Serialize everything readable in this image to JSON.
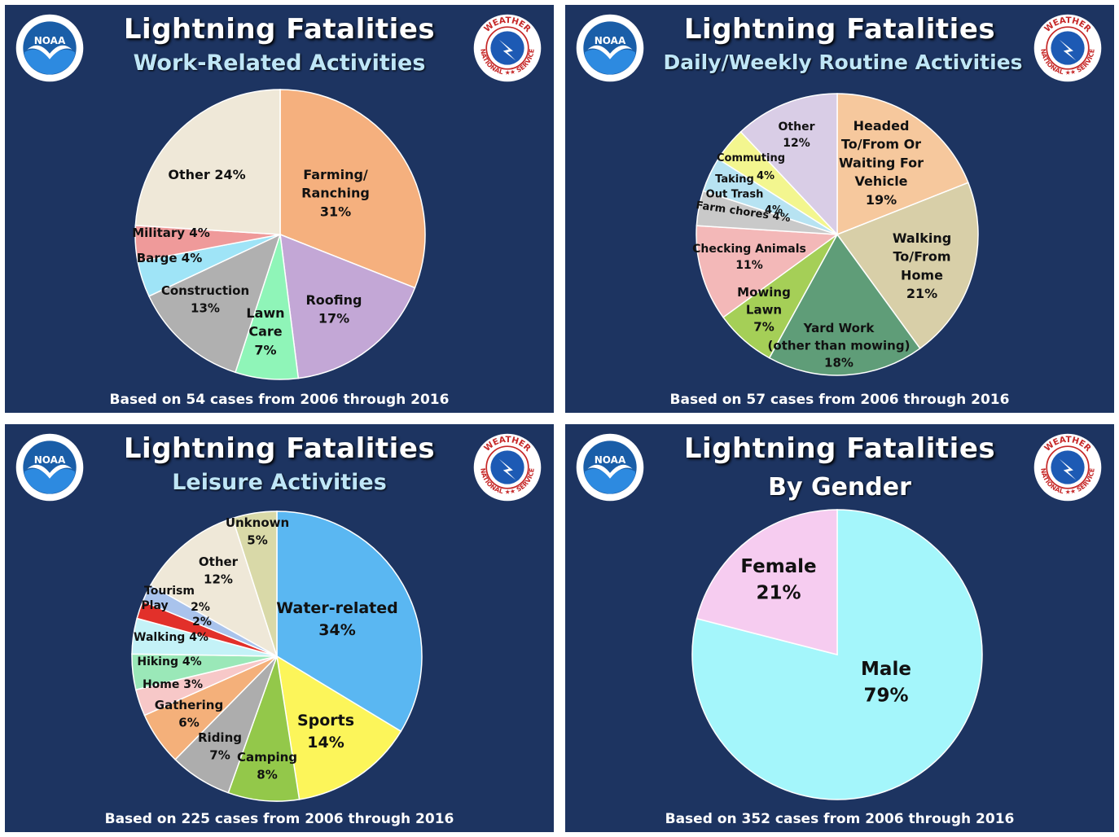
{
  "colors": {
    "panel_bg": "#1d3461",
    "title": "#ffffff",
    "subtitle": "#bfe6f7"
  },
  "logos": {
    "noaa_text": "NOAA",
    "nws_text_top": "WEATHER",
    "nws_text_left": "NATIONAL",
    "nws_text_right": "SERVICE"
  },
  "chart_data": [
    {
      "type": "pie",
      "title": "Lightning Fatalities",
      "subtitle": "Work-Related Activities",
      "footnote": "Based on 54 cases from 2006 through 2016",
      "slices": [
        {
          "label": "Farming/ Ranching",
          "value": 31,
          "pct_text": "31%",
          "color": "#f5b07e"
        },
        {
          "label": "Roofing",
          "value": 17,
          "pct_text": "17%",
          "color": "#c3a7d6"
        },
        {
          "label": "Lawn Care",
          "value": 7,
          "pct_text": "7%",
          "color": "#8ff5b8"
        },
        {
          "label": "Construction",
          "value": 13,
          "pct_text": "13%",
          "color": "#b0b0b0"
        },
        {
          "label": "Barge",
          "value": 4,
          "pct_text": "4%",
          "color": "#9fe4f7"
        },
        {
          "label": "Military",
          "value": 4,
          "pct_text": "4%",
          "color": "#ef9a9a"
        },
        {
          "label": "Other",
          "value": 24,
          "pct_text": "24%",
          "color": "#efe8d8"
        }
      ]
    },
    {
      "type": "pie",
      "title": "Lightning Fatalities",
      "subtitle": "Daily/Weekly Routine Activities",
      "footnote": "Based on 57 cases from 2006 through 2016",
      "slices": [
        {
          "label": "Headed To/From Or Waiting For Vehicle",
          "value": 19,
          "pct_text": "19%",
          "color": "#f6c89d"
        },
        {
          "label": "Walking To/From Home",
          "value": 21,
          "pct_text": "21%",
          "color": "#d8cfa8"
        },
        {
          "label": "Yard Work (other than mowing)",
          "value": 18,
          "pct_text": "18%",
          "color": "#5f9d78"
        },
        {
          "label": "Mowing Lawn",
          "value": 7,
          "pct_text": "7%",
          "color": "#a5cf57"
        },
        {
          "label": "Checking Animals",
          "value": 11,
          "pct_text": "11%",
          "color": "#f3b8b8"
        },
        {
          "label": "Farm chores",
          "value": 4,
          "pct_text": "4%",
          "color": "#c9c9c9"
        },
        {
          "label": "Taking Out Trash",
          "value": 4,
          "pct_text": "4%",
          "color": "#b7e3f2"
        },
        {
          "label": "Commuting",
          "value": 4,
          "pct_text": "4%",
          "color": "#f3f68f"
        },
        {
          "label": "Other",
          "value": 12,
          "pct_text": "12%",
          "color": "#d9cde6"
        }
      ]
    },
    {
      "type": "pie",
      "title": "Lightning Fatalities",
      "subtitle": "Leisure Activities",
      "footnote": "Based on 225 cases from 2006 through 2016",
      "slices": [
        {
          "label": "Water-related",
          "value": 34,
          "pct_text": "34%",
          "color": "#5ab7f2"
        },
        {
          "label": "Sports",
          "value": 14,
          "pct_text": "14%",
          "color": "#fcf55a"
        },
        {
          "label": "Camping",
          "value": 8,
          "pct_text": "8%",
          "color": "#93c84a"
        },
        {
          "label": "Riding",
          "value": 7,
          "pct_text": "7%",
          "color": "#adadad"
        },
        {
          "label": "Gathering",
          "value": 6,
          "pct_text": "6%",
          "color": "#f4b07a"
        },
        {
          "label": "Home",
          "value": 3,
          "pct_text": "3%",
          "color": "#f7c8c8"
        },
        {
          "label": "Hiking",
          "value": 4,
          "pct_text": "4%",
          "color": "#9ae8b8"
        },
        {
          "label": "Walking",
          "value": 4,
          "pct_text": "4%",
          "color": "#c4f2f7"
        },
        {
          "label": "Play",
          "value": 2,
          "pct_text": "2%",
          "color": "#e2302a"
        },
        {
          "label": "Tourism",
          "value": 2,
          "pct_text": "2%",
          "color": "#a9c3ec"
        },
        {
          "label": "Other",
          "value": 12,
          "pct_text": "12%",
          "color": "#efe8d8"
        },
        {
          "label": "Unknown",
          "value": 5,
          "pct_text": "5%",
          "color": "#d9d9a8"
        }
      ]
    },
    {
      "type": "pie",
      "title": "Lightning Fatalities",
      "subtitle": "By Gender",
      "footnote": "Based on 352 cases from 2006 through 2016",
      "slices": [
        {
          "label": "Male",
          "value": 79,
          "pct_text": "79%",
          "color": "#a4f6fb"
        },
        {
          "label": "Female",
          "value": 21,
          "pct_text": "21%",
          "color": "#f6ccf0"
        }
      ]
    }
  ]
}
